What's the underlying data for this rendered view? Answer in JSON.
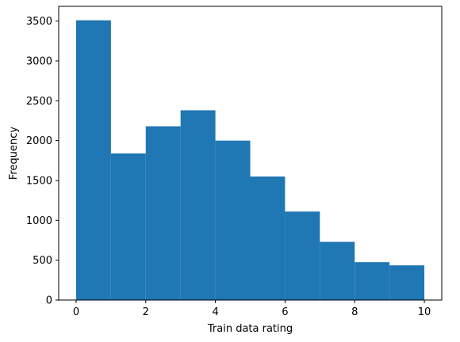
{
  "chart_data": {
    "type": "bar",
    "title": "",
    "xlabel": "Train data rating",
    "ylabel": "Frequency",
    "bins": [
      {
        "start": 0,
        "end": 1,
        "value": 3510
      },
      {
        "start": 1,
        "end": 2,
        "value": 1840
      },
      {
        "start": 2,
        "end": 3,
        "value": 2180
      },
      {
        "start": 3,
        "end": 4,
        "value": 2380
      },
      {
        "start": 4,
        "end": 5,
        "value": 2000
      },
      {
        "start": 5,
        "end": 6,
        "value": 1550
      },
      {
        "start": 6,
        "end": 7,
        "value": 1110
      },
      {
        "start": 7,
        "end": 8,
        "value": 730
      },
      {
        "start": 8,
        "end": 9,
        "value": 475
      },
      {
        "start": 9,
        "end": 10,
        "value": 435
      }
    ],
    "xlim": [
      -0.5,
      10.5
    ],
    "ylim": [
      0,
      3685
    ],
    "xticks": [
      0,
      2,
      4,
      6,
      8,
      10
    ],
    "xtick_labels": [
      "0",
      "2",
      "4",
      "6",
      "8",
      "10"
    ],
    "yticks": [
      0,
      500,
      1000,
      1500,
      2000,
      2500,
      3000,
      3500
    ],
    "ytick_labels": [
      "0",
      "500",
      "1000",
      "1500",
      "2000",
      "2500",
      "3000",
      "3500"
    ],
    "grid": false,
    "bar_color": "#1f77b4"
  }
}
